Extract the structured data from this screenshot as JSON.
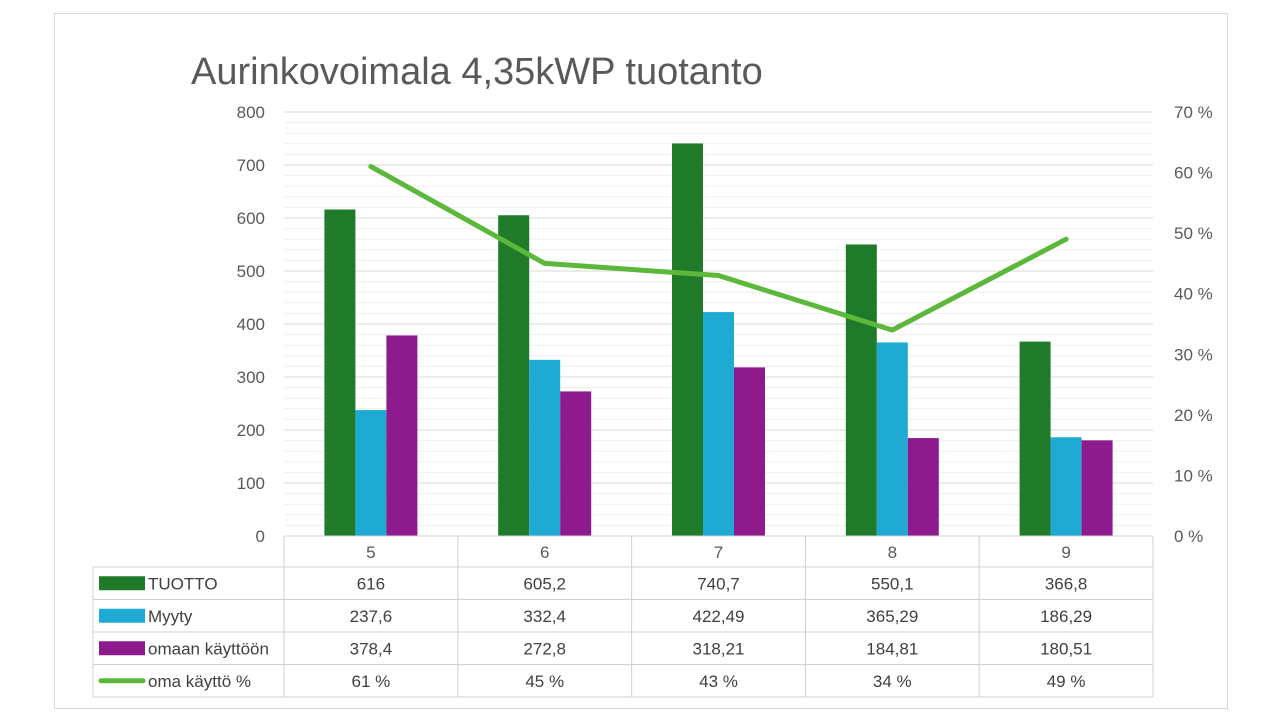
{
  "chart_data": {
    "type": "bar",
    "title": "Aurinkovoimala 4,35kWP tuotanto",
    "categories": [
      "5",
      "6",
      "7",
      "8",
      "9"
    ],
    "series": [
      {
        "name": "TUOTTO",
        "type": "bar",
        "axis": "left",
        "color": "#1f7a2a",
        "values": [
          616,
          605.2,
          740.7,
          550.1,
          366.8
        ],
        "labels": [
          "616",
          "605,2",
          "740,7",
          "550,1",
          "366,8"
        ]
      },
      {
        "name": "Myyty",
        "type": "bar",
        "axis": "left",
        "color": "#1faad4",
        "values": [
          237.6,
          332.4,
          422.49,
          365.29,
          186.29
        ],
        "labels": [
          "237,6",
          "332,4",
          "422,49",
          "365,29",
          "186,29"
        ]
      },
      {
        "name": "omaan käyttöön",
        "type": "bar",
        "axis": "left",
        "color": "#8e1b8e",
        "values": [
          378.4,
          272.8,
          318.21,
          184.81,
          180.51
        ],
        "labels": [
          "378,4",
          "272,8",
          "318,21",
          "184,81",
          "180,51"
        ]
      },
      {
        "name": "oma käyttö %",
        "type": "line",
        "axis": "right",
        "color": "#5cb83a",
        "values": [
          61,
          45,
          43,
          34,
          49
        ],
        "labels": [
          "61 %",
          "45 %",
          "43 %",
          "34 %",
          "49 %"
        ]
      }
    ],
    "y_left": {
      "min": 0,
      "max": 800,
      "ticks": [
        "0",
        "100",
        "200",
        "300",
        "400",
        "500",
        "600",
        "700",
        "800"
      ]
    },
    "y_right": {
      "min": 0,
      "max": 70,
      "ticks": [
        "0 %",
        "10 %",
        "20 %",
        "30 %",
        "40 %",
        "50 %",
        "60 %",
        "70 %"
      ]
    },
    "grid": true,
    "legend": "data-table"
  }
}
